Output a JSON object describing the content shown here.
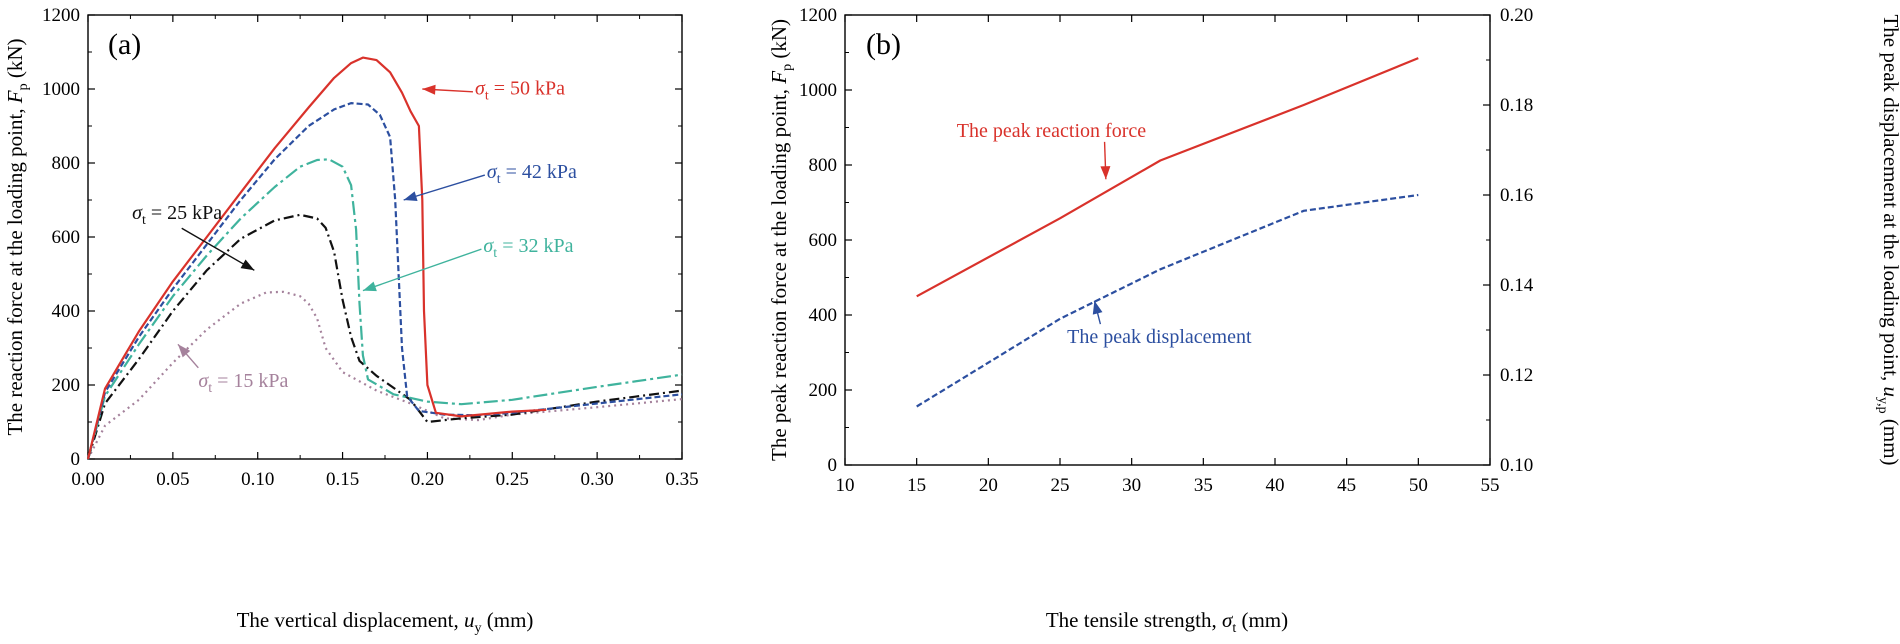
{
  "chart_data": [
    {
      "type": "line",
      "panel_label": "(a)",
      "xlabel": {
        "text": "The vertical displacement, ",
        "symbol": "u",
        "sub": "y",
        "unit": " (mm)"
      },
      "ylabel": {
        "text": "The reaction force at the loading point, ",
        "symbol": "F",
        "sub": "p",
        "unit": " (kN)"
      },
      "xlim": [
        0,
        0.35
      ],
      "ylim": [
        0,
        1200
      ],
      "xticks": [
        "0.00",
        "0.05",
        "0.10",
        "0.15",
        "0.20",
        "0.25",
        "0.30",
        "0.35"
      ],
      "yticks": [
        "0",
        "200",
        "400",
        "600",
        "800",
        "1000",
        "1200"
      ],
      "series": [
        {
          "name": "σt = 15 kPa",
          "symbol": "σ",
          "sub": "t",
          "value_text": " = 15 kPa",
          "color": "#a5829c",
          "dash": "2,4",
          "x": [
            0,
            0.01,
            0.03,
            0.05,
            0.07,
            0.09,
            0.105,
            0.115,
            0.125,
            0.13,
            0.135,
            0.14,
            0.15,
            0.17,
            0.19,
            0.21,
            0.23,
            0.25,
            0.3,
            0.35
          ],
          "y": [
            0,
            90,
            160,
            260,
            350,
            420,
            450,
            452,
            440,
            420,
            380,
            300,
            235,
            185,
            150,
            110,
            105,
            120,
            140,
            162
          ]
        },
        {
          "name": "σt = 25 kPa",
          "symbol": "σ",
          "sub": "t",
          "value_text": " = 25 kPa",
          "color": "#111111",
          "dash": "10,4,2,4",
          "x": [
            0,
            0.01,
            0.03,
            0.05,
            0.07,
            0.09,
            0.11,
            0.125,
            0.135,
            0.14,
            0.145,
            0.15,
            0.155,
            0.16,
            0.17,
            0.19,
            0.2,
            0.22,
            0.25,
            0.3,
            0.35
          ],
          "y": [
            0,
            150,
            270,
            400,
            510,
            595,
            645,
            660,
            650,
            625,
            560,
            430,
            330,
            265,
            225,
            160,
            100,
            110,
            120,
            155,
            185
          ]
        },
        {
          "name": "σt = 32 kPa",
          "symbol": "σ",
          "sub": "t",
          "value_text": " = 32 kPa",
          "color": "#3fb39d",
          "dash": "14,4,3,4",
          "x": [
            0,
            0.01,
            0.03,
            0.05,
            0.07,
            0.09,
            0.11,
            0.125,
            0.135,
            0.142,
            0.15,
            0.155,
            0.158,
            0.16,
            0.162,
            0.165,
            0.18,
            0.2,
            0.22,
            0.25,
            0.3,
            0.35
          ],
          "y": [
            0,
            170,
            310,
            440,
            550,
            650,
            735,
            790,
            808,
            810,
            790,
            740,
            620,
            420,
            280,
            215,
            175,
            155,
            148,
            160,
            195,
            228
          ]
        },
        {
          "name": "σt = 42 kPa",
          "symbol": "σ",
          "sub": "t",
          "value_text": " = 42 kPa",
          "color": "#2c4fa0",
          "dash": "6,3",
          "x": [
            0,
            0.01,
            0.03,
            0.05,
            0.07,
            0.09,
            0.11,
            0.13,
            0.145,
            0.155,
            0.165,
            0.172,
            0.178,
            0.181,
            0.183,
            0.185,
            0.188,
            0.195,
            0.21,
            0.23,
            0.25,
            0.3,
            0.35
          ],
          "y": [
            0,
            180,
            330,
            460,
            580,
            700,
            810,
            900,
            945,
            962,
            958,
            930,
            870,
            700,
            500,
            300,
            170,
            130,
            120,
            118,
            125,
            150,
            175
          ]
        },
        {
          "name": "σt = 50 kPa",
          "symbol": "σ",
          "sub": "t",
          "value_text": " = 50 kPa",
          "color": "#d9322b",
          "dash": "",
          "x": [
            0,
            0.01,
            0.03,
            0.05,
            0.07,
            0.09,
            0.11,
            0.13,
            0.145,
            0.155,
            0.162,
            0.17,
            0.178,
            0.185,
            0.19,
            0.195,
            0.197,
            0.198,
            0.2,
            0.205,
            0.22,
            0.25,
            0.27
          ],
          "y": [
            0,
            190,
            345,
            480,
            600,
            720,
            840,
            950,
            1030,
            1070,
            1085,
            1078,
            1045,
            990,
            940,
            900,
            700,
            400,
            200,
            125,
            115,
            128,
            133
          ]
        }
      ],
      "annotations": [
        {
          "series": 4,
          "label_at": [
            0.228,
            985
          ],
          "arrow_to": [
            0.197,
            1000
          ]
        },
        {
          "series": 3,
          "label_at": [
            0.235,
            760
          ],
          "arrow_to": [
            0.186,
            700
          ]
        },
        {
          "series": 2,
          "label_at": [
            0.233,
            560
          ],
          "arrow_to": [
            0.162,
            455
          ]
        },
        {
          "series": 1,
          "label_at": [
            0.026,
            648
          ],
          "arrow_to": [
            0.098,
            510
          ]
        },
        {
          "series": 0,
          "label_at": [
            0.065,
            195
          ],
          "arrow_to": [
            0.053,
            310
          ]
        }
      ]
    },
    {
      "type": "line",
      "panel_label": "(b)",
      "xlabel": {
        "text": "The tensile strength, ",
        "symbol": "σ",
        "sub": "t",
        "unit": " (mm)"
      },
      "ylabel": {
        "text": "The peak reaction force at the loading point, ",
        "symbol": "F",
        "sub": "p",
        "unit": " (kN)"
      },
      "y2label": {
        "text": "The peak displacement at the loading point, ",
        "symbol": "u",
        "sub": "y,p",
        "unit": " (mm)"
      },
      "xlim": [
        10,
        55
      ],
      "ylim": [
        0,
        1200
      ],
      "y2lim": [
        0.1,
        0.2
      ],
      "xticks": [
        "10",
        "15",
        "20",
        "25",
        "30",
        "35",
        "40",
        "45",
        "50",
        "55"
      ],
      "yticks": [
        "0",
        "200",
        "400",
        "600",
        "800",
        "1000",
        "1200"
      ],
      "y2ticks": [
        "0.10",
        "0.12",
        "0.14",
        "0.16",
        "0.18",
        "0.20"
      ],
      "series": [
        {
          "name": "The peak reaction force",
          "axis": "left",
          "color": "#d9322b",
          "dash": "",
          "x": [
            15,
            25,
            32,
            42,
            50
          ],
          "y": [
            450,
            658,
            812,
            960,
            1085
          ]
        },
        {
          "name": "The peak displacement",
          "axis": "right",
          "color": "#2c4fa0",
          "dash": "6,3",
          "x": [
            15,
            25,
            32,
            42,
            50
          ],
          "y": [
            0.113,
            0.1325,
            0.1435,
            0.1565,
            0.16
          ]
        }
      ],
      "annotations": [
        {
          "series": 0,
          "text": "The peak reaction force",
          "label_at": [
            17.8,
            875
          ],
          "arrow_to": [
            28.2,
            762
          ]
        },
        {
          "series": 1,
          "text": "The peak displacement",
          "label_at": [
            25.5,
            325
          ],
          "arrow_to": [
            27.4,
            0.1365
          ]
        }
      ]
    }
  ]
}
